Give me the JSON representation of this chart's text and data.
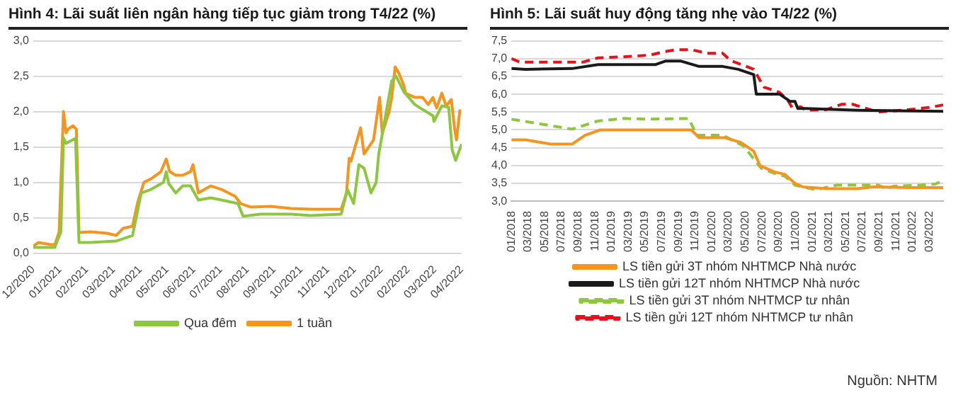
{
  "chart_data": [
    {
      "type": "line",
      "title": "Hình 4: Lãi suất liên ngân hàng tiếp tục giảm trong T4/22 (%)",
      "marker": "none",
      "grid": "y",
      "legend": "bottom",
      "xlim": [
        "2020-12-01",
        "2022-04-01"
      ],
      "xticks": [
        {
          "value": "2020-12",
          "label": "12/2020"
        },
        {
          "value": "2021-01",
          "label": "01/2021"
        },
        {
          "value": "2021-02",
          "label": "02/2021"
        },
        {
          "value": "2021-03",
          "label": "03/2021"
        },
        {
          "value": "2021-04",
          "label": "04/2021"
        },
        {
          "value": "2021-05",
          "label": "05/2021"
        },
        {
          "value": "2021-06",
          "label": "06/2021"
        },
        {
          "value": "2021-07",
          "label": "07/2021"
        },
        {
          "value": "2021-08",
          "label": "08/2021"
        },
        {
          "value": "2021-09",
          "label": "09/2021"
        },
        {
          "value": "2021-10",
          "label": "10/2021"
        },
        {
          "value": "2021-11",
          "label": "11/2021"
        },
        {
          "value": "2021-12",
          "label": "12/2021"
        },
        {
          "value": "2022-01",
          "label": "01/2022"
        },
        {
          "value": "2022-02",
          "label": "02/2022"
        },
        {
          "value": "2022-03",
          "label": "03/2022"
        },
        {
          "value": "2022-04",
          "label": "04/2022"
        }
      ],
      "ylim": [
        0,
        3
      ],
      "yticks": [
        {
          "value": 0,
          "label": "0,0"
        },
        {
          "value": 0.5,
          "label": "0,5"
        },
        {
          "value": 1,
          "label": "1,0"
        },
        {
          "value": 1.5,
          "label": "1,5"
        },
        {
          "value": 2,
          "label": "2,0"
        },
        {
          "value": 2.5,
          "label": "2,5"
        },
        {
          "value": 3,
          "label": "3,0"
        }
      ],
      "series": [
        {
          "name": "Qua đêm",
          "color": "#8dc63f",
          "line_style": "solid",
          "x": [
            "2020-12-01",
            "2020-12-26",
            "2021-01-02",
            "2021-01-05",
            "2021-01-08",
            "2021-01-19",
            "2021-01-23",
            "2021-02-05",
            "2021-03-04",
            "2021-03-23",
            "2021-04-02",
            "2021-04-13",
            "2021-04-27",
            "2021-04-30",
            "2021-05-03",
            "2021-05-11",
            "2021-05-19",
            "2021-05-28",
            "2021-06-06",
            "2021-06-20",
            "2021-07-02",
            "2021-07-21",
            "2021-07-27",
            "2021-08-16",
            "2021-09-20",
            "2021-10-12",
            "2021-11-16",
            "2021-11-23",
            "2021-11-30",
            "2021-12-06",
            "2021-12-12",
            "2021-12-20",
            "2021-12-26",
            "2021-12-29",
            "2022-01-13",
            "2022-01-18",
            "2022-01-27",
            "2022-02-08",
            "2022-02-16",
            "2022-02-27",
            "2022-02-28",
            "2022-03-09",
            "2022-03-17",
            "2022-03-21",
            "2022-03-25",
            "2022-04-01"
          ],
          "values": [
            0.08,
            0.08,
            0.3,
            1.63,
            1.55,
            1.62,
            0.15,
            0.15,
            0.17,
            0.25,
            0.85,
            0.9,
            1.0,
            1.15,
            0.98,
            0.85,
            0.95,
            0.95,
            0.75,
            0.78,
            0.75,
            0.7,
            0.52,
            0.55,
            0.55,
            0.53,
            0.55,
            0.9,
            0.7,
            1.25,
            1.2,
            0.85,
            1.0,
            1.4,
            2.43,
            2.5,
            2.28,
            2.1,
            2.03,
            1.94,
            1.86,
            2.08,
            2.06,
            1.46,
            1.31,
            1.54
          ]
        },
        {
          "name": "1 tuần",
          "color": "#f7941d",
          "line_style": "solid",
          "x": [
            "2020-12-01",
            "2020-12-07",
            "2020-12-21",
            "2020-12-26",
            "2020-12-31",
            "2021-01-05",
            "2021-01-08",
            "2021-01-10",
            "2021-01-16",
            "2021-01-20",
            "2021-01-23",
            "2021-02-05",
            "2021-02-22",
            "2021-03-04",
            "2021-03-12",
            "2021-03-23",
            "2021-03-29",
            "2021-04-05",
            "2021-04-13",
            "2021-04-24",
            "2021-04-30",
            "2021-05-04",
            "2021-05-11",
            "2021-05-19",
            "2021-05-28",
            "2021-05-31",
            "2021-06-06",
            "2021-06-20",
            "2021-07-02",
            "2021-07-18",
            "2021-07-24",
            "2021-08-05",
            "2021-08-28",
            "2021-09-20",
            "2021-10-12",
            "2021-11-16",
            "2021-11-22",
            "2021-11-25",
            "2021-11-27",
            "2021-12-08",
            "2021-12-12",
            "2021-12-23",
            "2021-12-30",
            "2022-01-02",
            "2022-01-10",
            "2022-01-13",
            "2022-01-17",
            "2022-01-21",
            "2022-01-27",
            "2022-01-29",
            "2022-02-08",
            "2022-02-16",
            "2022-02-22",
            "2022-02-27",
            "2022-03-03",
            "2022-03-09",
            "2022-03-14",
            "2022-03-20",
            "2022-03-24",
            "2022-03-26",
            "2022-03-30"
          ],
          "values": [
            0.1,
            0.15,
            0.12,
            0.12,
            0.3,
            2.0,
            1.7,
            1.75,
            1.8,
            1.75,
            0.29,
            0.3,
            0.28,
            0.25,
            0.35,
            0.38,
            0.72,
            1.0,
            1.05,
            1.15,
            1.33,
            1.15,
            1.1,
            1.1,
            1.15,
            1.25,
            0.85,
            0.95,
            0.9,
            0.8,
            0.7,
            0.65,
            0.66,
            0.63,
            0.62,
            0.62,
            0.85,
            1.34,
            1.3,
            1.77,
            1.4,
            1.6,
            2.2,
            1.69,
            2.0,
            2.2,
            2.63,
            2.55,
            2.37,
            2.26,
            2.2,
            2.2,
            2.1,
            2.2,
            2.05,
            2.26,
            2.08,
            2.17,
            1.74,
            1.6,
            2.03
          ]
        }
      ]
    },
    {
      "type": "line",
      "title": "Hình 5: Lãi suất huy động tăng nhẹ vào T4/22 (%)",
      "marker": "none",
      "grid": "y",
      "legend": "bottom",
      "xlim": [
        "2018-01-01",
        "2022-04-21"
      ],
      "xticks": [
        {
          "value": "2018-01",
          "label": "01/2018"
        },
        {
          "value": "2018-03",
          "label": "03/2018"
        },
        {
          "value": "2018-05",
          "label": "05/2018"
        },
        {
          "value": "2018-07",
          "label": "07/2018"
        },
        {
          "value": "2018-09",
          "label": "09/2018"
        },
        {
          "value": "2018-11",
          "label": "11/2018"
        },
        {
          "value": "2019-01",
          "label": "01/2019"
        },
        {
          "value": "2019-03",
          "label": "03/2019"
        },
        {
          "value": "2019-05",
          "label": "05/2019"
        },
        {
          "value": "2019-07",
          "label": "07/2019"
        },
        {
          "value": "2019-09",
          "label": "09/2019"
        },
        {
          "value": "2019-11",
          "label": "11/2019"
        },
        {
          "value": "2020-01",
          "label": "01/2020"
        },
        {
          "value": "2020-03",
          "label": "03/2020"
        },
        {
          "value": "2020-05",
          "label": "05/2020"
        },
        {
          "value": "2020-07",
          "label": "07/2020"
        },
        {
          "value": "2020-09",
          "label": "09/2020"
        },
        {
          "value": "2020-11",
          "label": "11/2020"
        },
        {
          "value": "2021-01",
          "label": "01/2021"
        },
        {
          "value": "2021-03",
          "label": "03/2021"
        },
        {
          "value": "2021-05",
          "label": "05/2021"
        },
        {
          "value": "2021-07",
          "label": "07/2021"
        },
        {
          "value": "2021-09",
          "label": "09/2021"
        },
        {
          "value": "2021-11",
          "label": "11/2021"
        },
        {
          "value": "2022-01",
          "label": "01/2022"
        },
        {
          "value": "2022-03",
          "label": "03/2022"
        }
      ],
      "ylim": [
        3,
        7.5
      ],
      "yticks": [
        {
          "value": 3,
          "label": "3,0"
        },
        {
          "value": 3.5,
          "label": "3,5"
        },
        {
          "value": 4,
          "label": "4,0"
        },
        {
          "value": 4.5,
          "label": "4,5"
        },
        {
          "value": 5,
          "label": "5,0"
        },
        {
          "value": 5.5,
          "label": "5,5"
        },
        {
          "value": 6,
          "label": "6,0"
        },
        {
          "value": 6.5,
          "label": "6,5"
        },
        {
          "value": 7,
          "label": "7,0"
        },
        {
          "value": 7.5,
          "label": "7,5"
        }
      ],
      "annotations": [
        "Nguồn: NHTM"
      ],
      "series": [
        {
          "name": "LS tiền gửi 3T nhóm NHTMCP Nhà nước",
          "color": "#f7941d",
          "line_style": "solid",
          "x": [
            "2018-01-01",
            "2018-02-20",
            "2018-05-25",
            "2018-08-09",
            "2018-09-25",
            "2018-11-21",
            "2019-10-17",
            "2019-11-15",
            "2020-02-18",
            "2020-04-14",
            "2020-06-01",
            "2020-06-23",
            "2020-07-08",
            "2020-08-16",
            "2020-09-23",
            "2020-10-30",
            "2020-11-28",
            "2021-02-20",
            "2021-06-14",
            "2021-08-10",
            "2021-12-20",
            "2022-04-21"
          ],
          "values": [
            4.72,
            4.72,
            4.6,
            4.6,
            4.85,
            5.0,
            5.0,
            4.78,
            4.78,
            4.65,
            4.4,
            4.0,
            3.95,
            3.82,
            3.75,
            3.5,
            3.4,
            3.35,
            3.35,
            3.4,
            3.38,
            3.38
          ]
        },
        {
          "name": "LS tiền gửi 12T nhóm NHTMCP Nhà nước",
          "color": "#1a1a1a",
          "line_style": "solid",
          "x": [
            "2018-01-01",
            "2018-02-20",
            "2018-08-09",
            "2018-11-12",
            "2019-06-07",
            "2019-07-14",
            "2019-09-10",
            "2019-11-15",
            "2020-02-09",
            "2020-04-05",
            "2020-06-01",
            "2020-06-10",
            "2020-09-04",
            "2020-10-02",
            "2020-10-11",
            "2020-10-30",
            "2020-11-09",
            "2020-12-08",
            "2021-06-14",
            "2022-04-21"
          ],
          "values": [
            6.72,
            6.7,
            6.72,
            6.83,
            6.83,
            6.93,
            6.93,
            6.78,
            6.78,
            6.7,
            6.55,
            6.0,
            6.0,
            5.85,
            5.8,
            5.8,
            5.6,
            5.6,
            5.55,
            5.52
          ]
        },
        {
          "name": "LS tiền gửi 3T nhóm NHTMCP tư nhân",
          "color": "#8dc63f",
          "line_style": "dashed",
          "x": [
            "2018-01-01",
            "2018-08-09",
            "2018-11-12",
            "2019-02-14",
            "2019-05-19",
            "2019-10-08",
            "2019-11-06",
            "2020-02-09",
            "2020-04-24",
            "2020-06-20",
            "2020-06-29",
            "2020-08-16",
            "2020-09-23",
            "2020-10-30",
            "2020-12-08",
            "2021-01-15",
            "2021-03-30",
            "2021-06-14",
            "2021-08-29",
            "2021-09-26",
            "2021-10-25",
            "2022-01-28",
            "2022-03-23",
            "2022-04-21"
          ],
          "values": [
            5.3,
            5.02,
            5.25,
            5.32,
            5.3,
            5.32,
            4.85,
            4.85,
            4.55,
            4.0,
            3.92,
            3.78,
            3.7,
            3.45,
            3.38,
            3.32,
            3.45,
            3.45,
            3.45,
            3.35,
            3.42,
            3.45,
            3.48,
            3.58
          ]
        },
        {
          "name": "LS tiền gửi 12T nhóm NHTMCP tư nhân",
          "color": "#e8101a",
          "line_style": "dashed",
          "x": [
            "2018-01-01",
            "2018-02-02",
            "2018-09-16",
            "2018-11-12",
            "2019-02-14",
            "2019-05-19",
            "2019-07-14",
            "2019-08-22",
            "2019-10-17",
            "2019-12-14",
            "2020-02-09",
            "2020-03-07",
            "2020-06-01",
            "2020-07-08",
            "2020-09-04",
            "2020-10-02",
            "2020-10-21",
            "2020-11-19",
            "2020-12-08",
            "2021-02-20",
            "2021-04-18",
            "2021-05-26",
            "2021-08-29",
            "2021-12-20",
            "2022-03-04",
            "2022-04-21"
          ],
          "values": [
            7.0,
            6.9,
            6.9,
            7.02,
            7.05,
            7.1,
            7.2,
            7.25,
            7.25,
            7.15,
            7.15,
            6.95,
            6.7,
            6.2,
            6.05,
            5.85,
            5.6,
            5.65,
            5.55,
            5.57,
            5.72,
            5.72,
            5.5,
            5.57,
            5.63,
            5.7
          ]
        }
      ]
    }
  ]
}
